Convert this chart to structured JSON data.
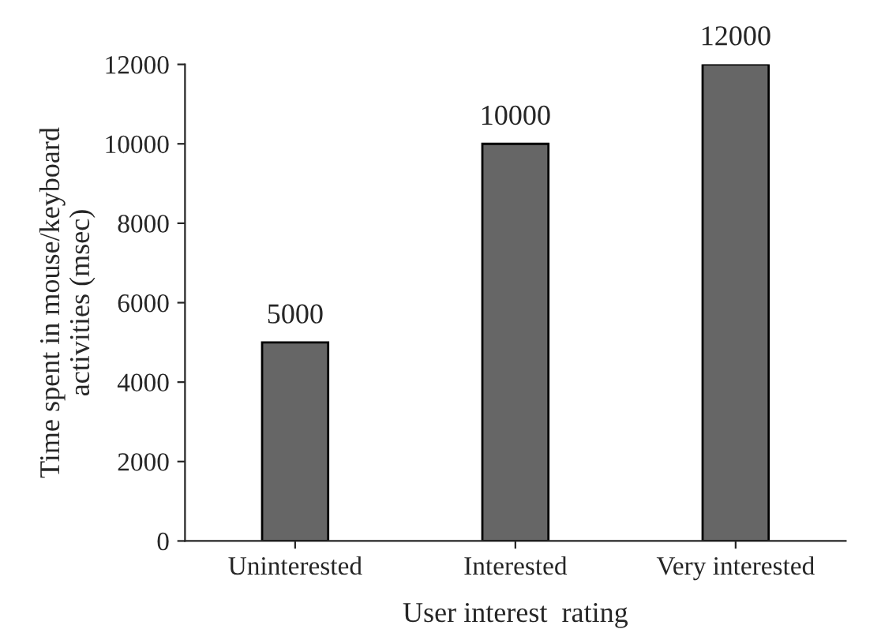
{
  "chart_data": {
    "type": "bar",
    "categories": [
      "Uninterested",
      "Interested",
      "Very interested"
    ],
    "values": [
      5000,
      10000,
      12000
    ],
    "color": "#666666",
    "data_labels": true,
    "xlabel": "User interest  rating",
    "ylabel": "Time spent in mouse/keyboard\nactivities (msec)",
    "ylim": [
      0,
      12000
    ],
    "yticks": [
      0,
      2000,
      4000,
      6000,
      8000,
      10000,
      12000
    ],
    "grid": false,
    "legend": false
  }
}
